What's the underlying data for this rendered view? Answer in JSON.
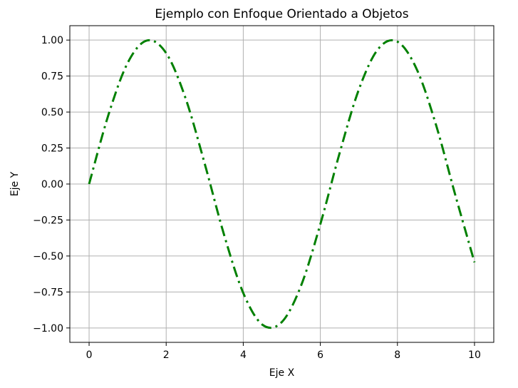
{
  "chart_data": {
    "type": "line",
    "title": "Ejemplo con Enfoque Orientado a Objetos",
    "xlabel": "Eje X",
    "ylabel": "Eje Y",
    "xlim": [
      -0.5,
      10.5
    ],
    "ylim": [
      -1.1,
      1.1
    ],
    "x_ticks": [
      0,
      2,
      4,
      6,
      8,
      10
    ],
    "x_tick_labels": [
      "0",
      "2",
      "4",
      "6",
      "8",
      "10"
    ],
    "y_ticks": [
      1.0,
      0.75,
      0.5,
      0.25,
      0.0,
      -0.25,
      -0.5,
      -0.75,
      -1.0
    ],
    "y_tick_labels": [
      "1.00",
      "0.75",
      "0.50",
      "0.25",
      "0.00",
      "−0.25",
      "−0.50",
      "−0.75",
      "−1.00"
    ],
    "grid": true,
    "line_style": "dash-dot",
    "series": [
      {
        "name": "",
        "color": "#008000",
        "x": [
          0,
          0.5,
          1,
          1.5,
          2,
          2.5,
          3,
          3.5,
          4,
          4.5,
          5,
          5.5,
          6,
          6.5,
          7,
          7.5,
          8,
          8.5,
          9,
          9.5,
          10
        ],
        "y": [
          0.0,
          0.479,
          0.841,
          0.997,
          0.909,
          0.598,
          0.141,
          -0.351,
          -0.757,
          -0.978,
          -0.959,
          -0.706,
          -0.279,
          0.215,
          0.657,
          0.938,
          0.989,
          0.798,
          0.412,
          -0.075,
          -0.544
        ]
      }
    ]
  }
}
